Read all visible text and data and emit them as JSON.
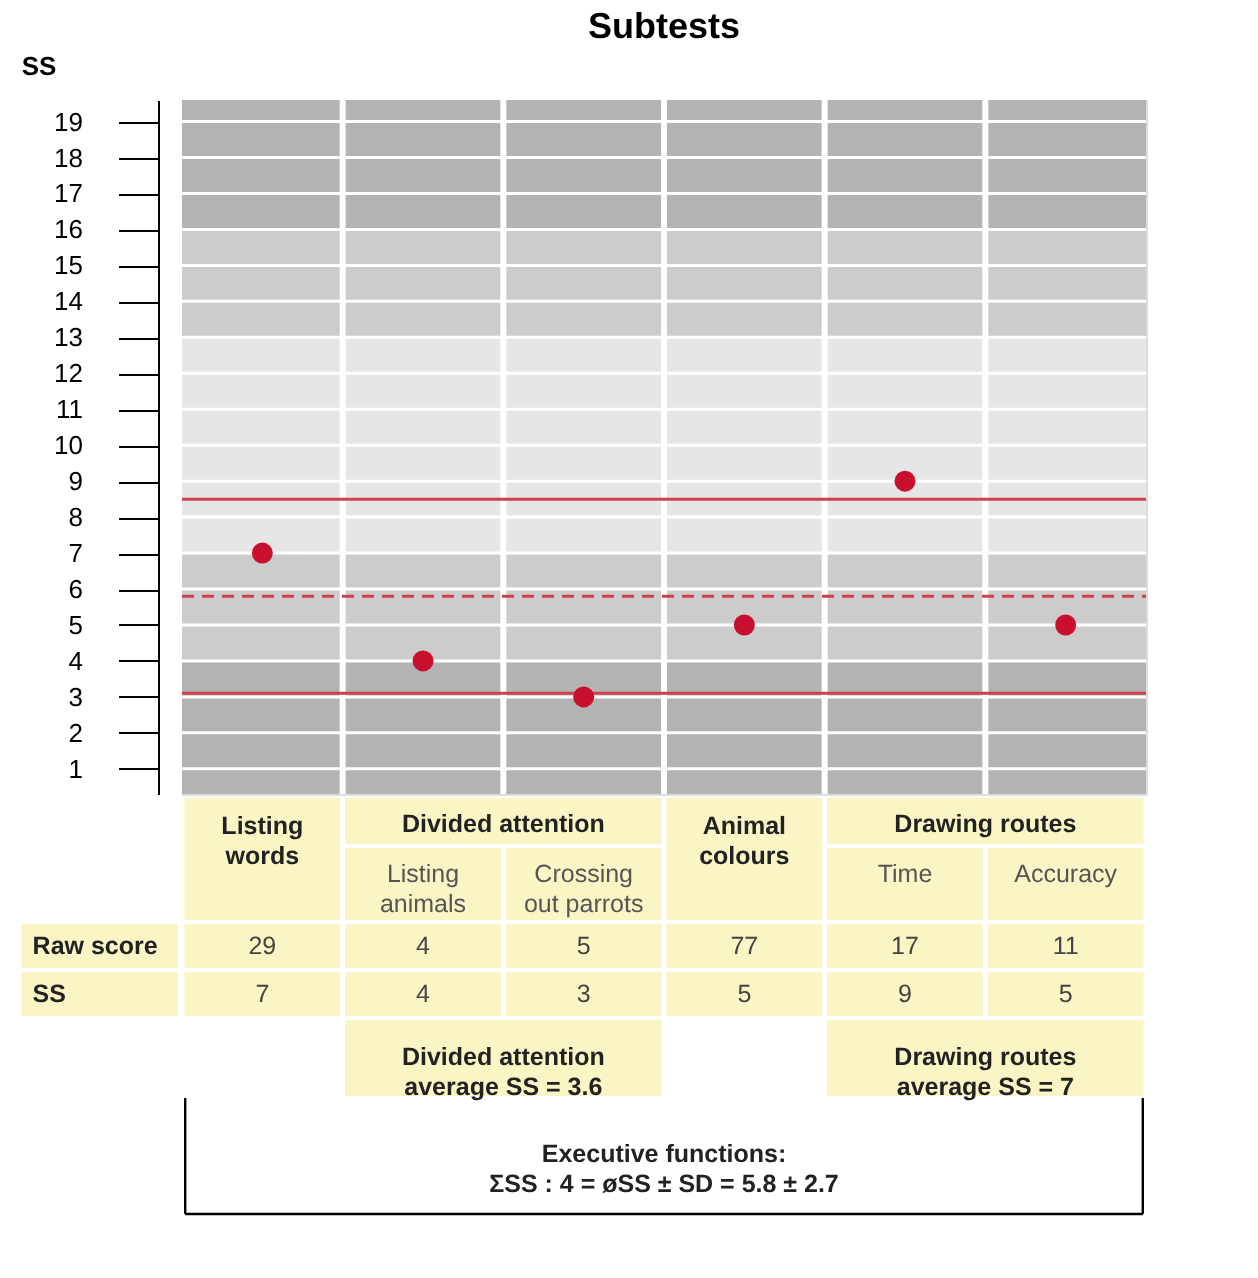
{
  "chart_data": {
    "type": "scatter",
    "title": "Subtests",
    "ylabel": "SS",
    "categories": [
      "Listing words",
      "Listing animals",
      "Crossing out parrots",
      "Animal colours",
      "Time",
      "Accuracy"
    ],
    "values": [
      7,
      4,
      3,
      5,
      9,
      5
    ],
    "color": "#c8102e",
    "marker": "circle",
    "data_labels": true,
    "ylim": [
      0.3,
      19.6
    ],
    "yticks": [
      1,
      2,
      3,
      4,
      5,
      6,
      7,
      8,
      9,
      10,
      11,
      12,
      13,
      14,
      15,
      16,
      17,
      18,
      19
    ],
    "grid": "y",
    "ref_lines": [
      {
        "axis": "y",
        "value": 8.5,
        "color": "#d0404c",
        "line_style": "solid"
      },
      {
        "axis": "y",
        "value": 5.8,
        "color": "#d0404c",
        "line_style": "dashed"
      },
      {
        "axis": "y",
        "value": 3.1,
        "color": "#d0404c",
        "line_style": "solid"
      }
    ],
    "bands": [
      {
        "axis": "y",
        "from": 0.3,
        "to": 4,
        "color": "#b3b3b3"
      },
      {
        "axis": "y",
        "from": 4,
        "to": 7,
        "color": "#cccccc"
      },
      {
        "axis": "y",
        "from": 7,
        "to": 13,
        "color": "#e6e6e6"
      },
      {
        "axis": "y",
        "from": 13,
        "to": 16,
        "color": "#cccccc"
      },
      {
        "axis": "y",
        "from": 16,
        "to": 19.6,
        "color": "#b3b3b3"
      }
    ],
    "annotations": [
      "Divided attention",
      "Drawing routes",
      "Raw score",
      "SS",
      "29",
      "4",
      "5",
      "77",
      "17",
      "11",
      "Divided attention\naverage SS = 3.6",
      "Drawing routes\naverage SS = 7",
      "Executive functions:\nΣSS : 4 = øSS ± SD = 5.8 ± 2.7"
    ]
  }
}
